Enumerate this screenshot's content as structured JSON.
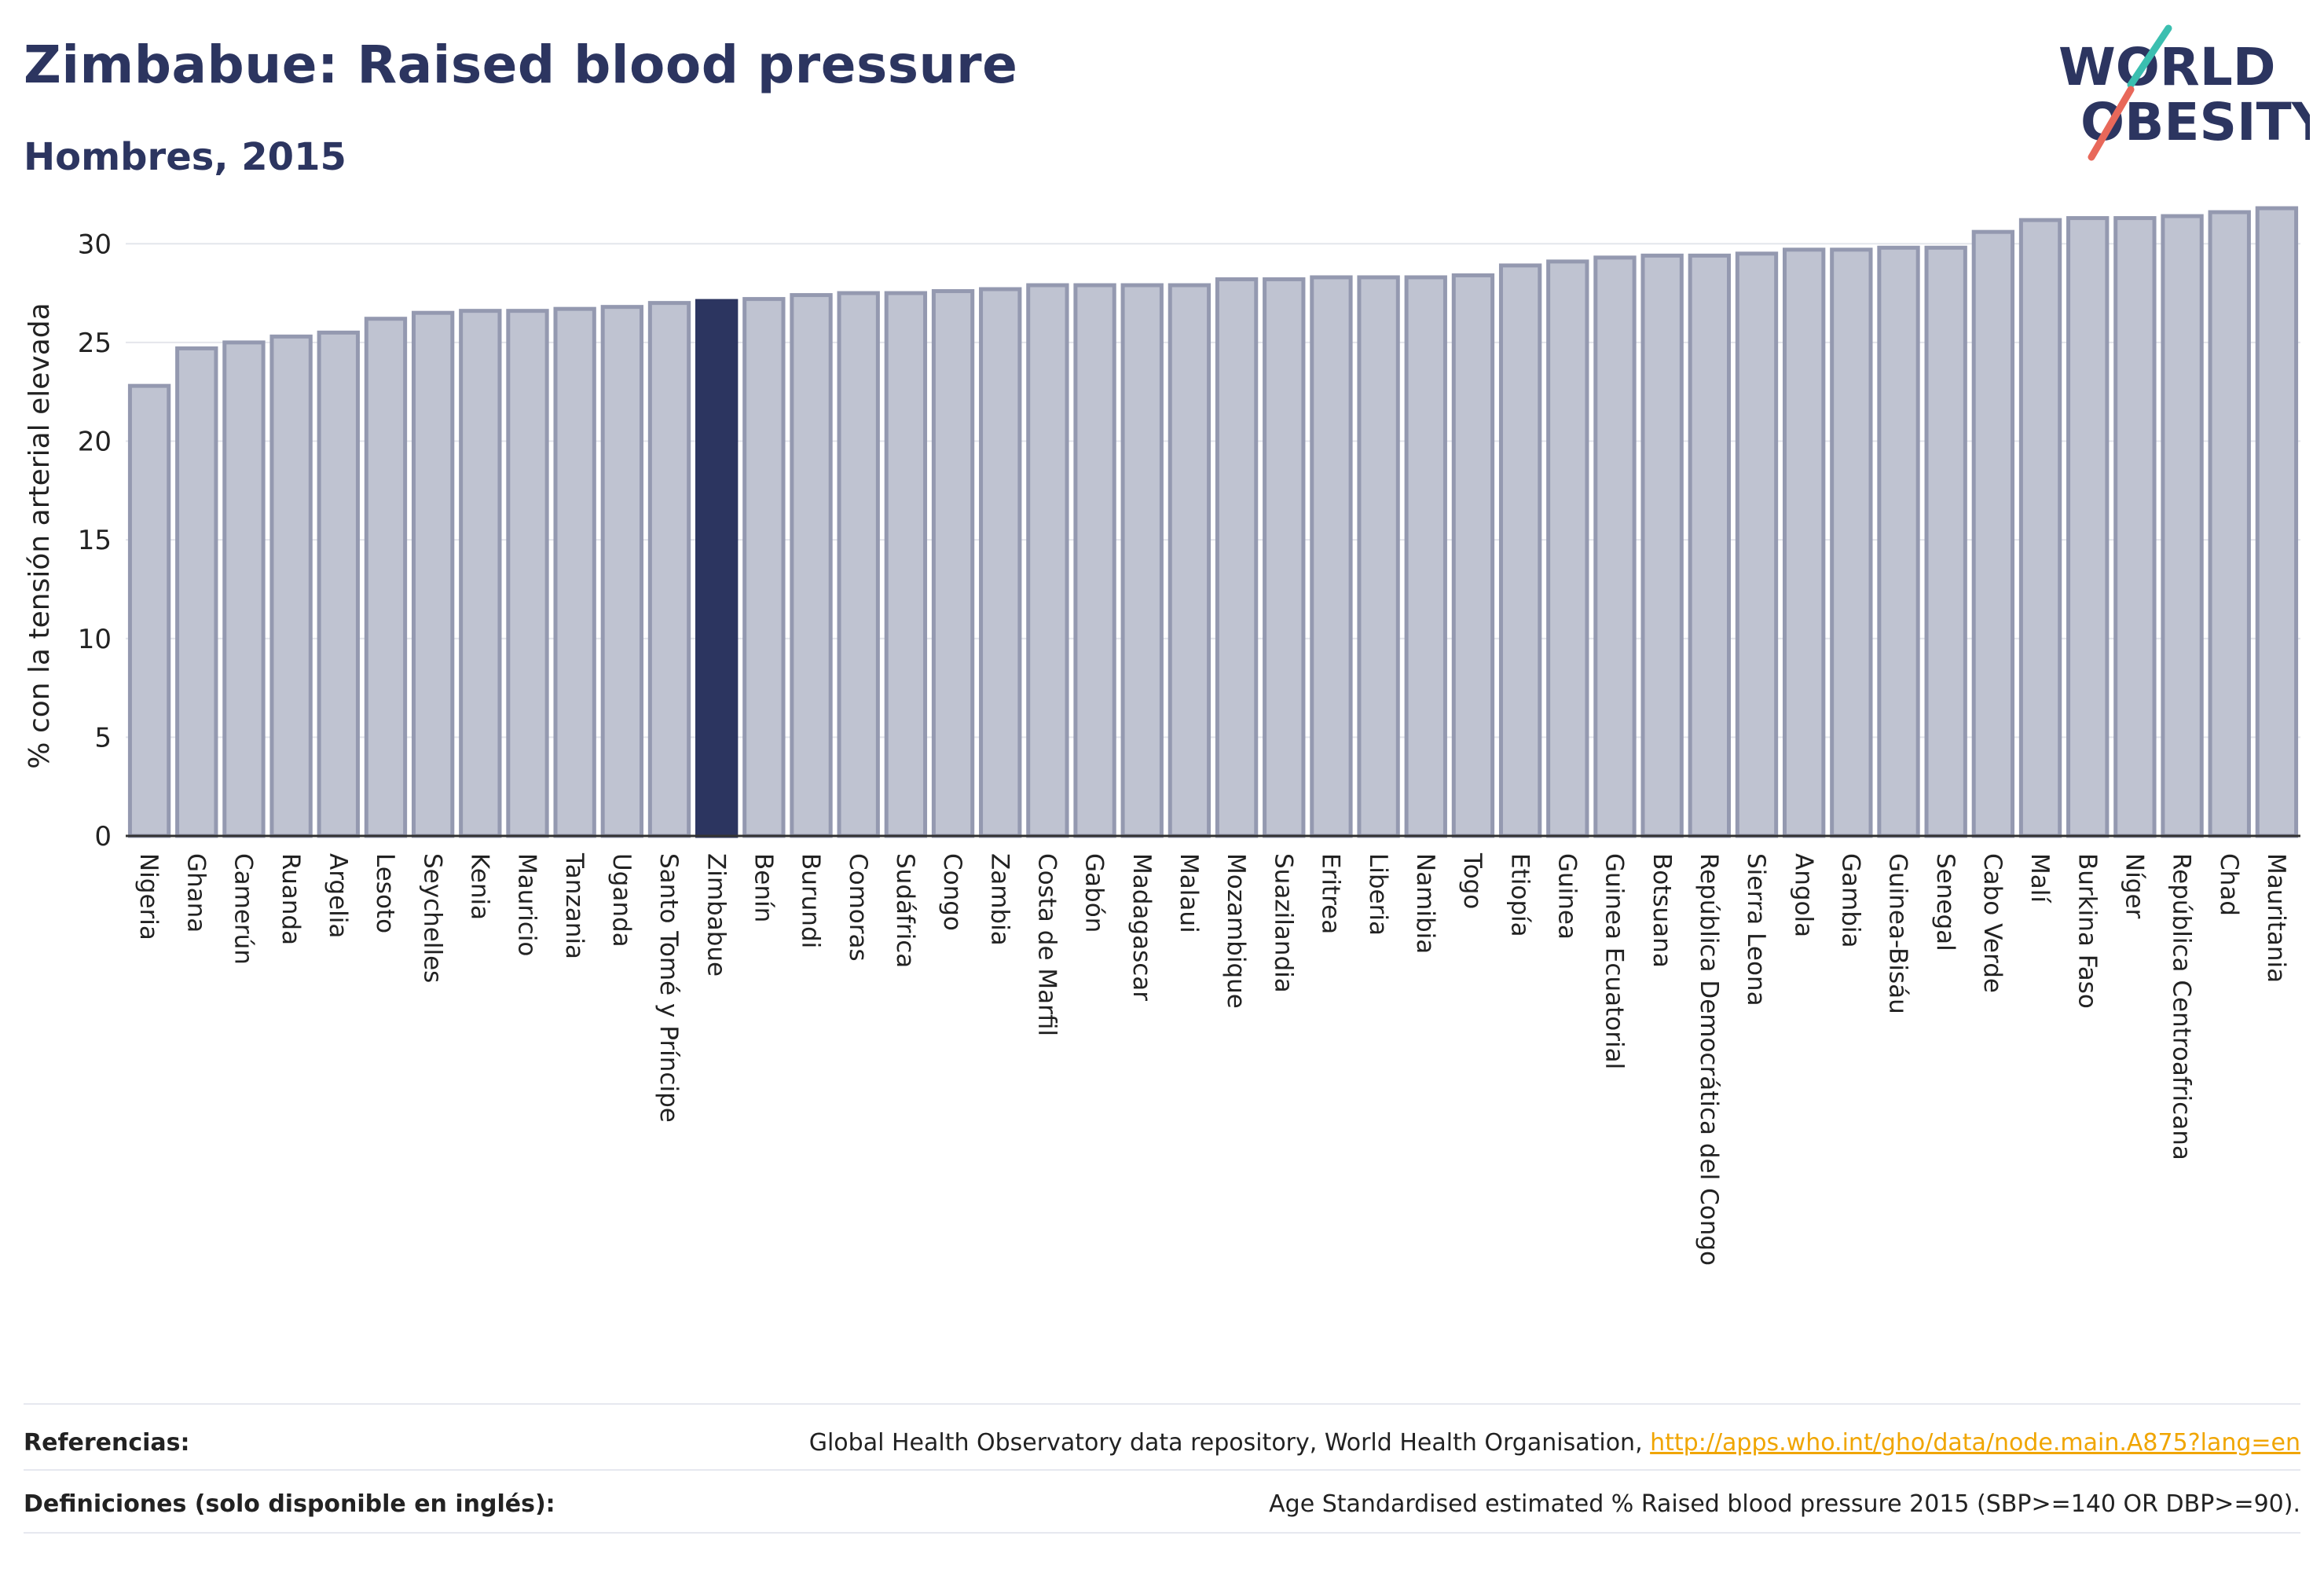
{
  "header": {
    "title": "Zimbabue: Raised blood pressure",
    "subtitle": "Hombres, 2015"
  },
  "logo": {
    "line1": "WORLD",
    "line2": "OBESITY",
    "icon": "world-obesity-logo"
  },
  "chart_data": {
    "type": "bar",
    "ylabel": "% con la tensión arterial elevada",
    "xlabel": "",
    "ylim": [
      0,
      32
    ],
    "yticks": [
      0,
      5,
      10,
      15,
      20,
      25,
      30
    ],
    "grid": true,
    "highlight": "Zimbabue",
    "colors": {
      "bar": "#bfc3d1",
      "bar_border": "#9499b0",
      "highlight": "#2c3560",
      "grid": "#e4e6ec"
    },
    "categories": [
      "Nigeria",
      "Ghana",
      "Camerún",
      "Ruanda",
      "Argelia",
      "Lesoto",
      "Seychelles",
      "Kenia",
      "Mauricio",
      "Tanzania",
      "Uganda",
      "Santo Tomé y Príncipe",
      "Zimbabue",
      "Benín",
      "Burundi",
      "Comoras",
      "Sudáfrica",
      "Congo",
      "Zambia",
      "Costa de Marfil",
      "Gabón",
      "Madagascar",
      "Malaui",
      "Mozambique",
      "Suazilandia",
      "Eritrea",
      "Liberia",
      "Namibia",
      "Togo",
      "Etiopía",
      "Guinea",
      "Guinea Ecuatorial",
      "Botsuana",
      "República Democrática del Congo",
      "Sierra Leona",
      "Angola",
      "Gambia",
      "Guinea-Bisáu",
      "Senegal",
      "Cabo Verde",
      "Malí",
      "Burkina Faso",
      "Níger",
      "República Centroafricana",
      "Chad",
      "Mauritania"
    ],
    "values": [
      22.8,
      24.7,
      25.0,
      25.3,
      25.5,
      26.2,
      26.5,
      26.6,
      26.6,
      26.7,
      26.8,
      27.0,
      27.1,
      27.2,
      27.4,
      27.5,
      27.5,
      27.6,
      27.7,
      27.9,
      27.9,
      27.9,
      27.9,
      28.2,
      28.2,
      28.3,
      28.3,
      28.3,
      28.4,
      28.9,
      29.1,
      29.3,
      29.4,
      29.4,
      29.5,
      29.7,
      29.7,
      29.8,
      29.8,
      30.6,
      31.2,
      31.3,
      31.3,
      31.4,
      31.6,
      31.8
    ]
  },
  "footer": {
    "references_label": "Referencias:",
    "references_text": "Global Health Observatory data repository, World Health Organisation, ",
    "references_link": "http://apps.who.int/gho/data/node.main.A875?lang=en",
    "definitions_label": "Definiciones (solo disponible en inglés):",
    "definitions_text": "Age Standardised estimated % Raised blood pressure 2015 (SBP>=140 OR DBP>=90)."
  }
}
